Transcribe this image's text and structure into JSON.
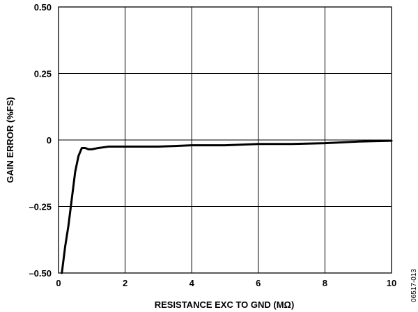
{
  "chart_data": {
    "type": "line",
    "title": "",
    "xlabel": "RESISTANCE EXC TO GND (MΩ)",
    "ylabel": "GAIN ERROR (%FS)",
    "xlim": [
      0,
      10
    ],
    "ylim": [
      -0.5,
      0.5
    ],
    "x_ticks": [
      0,
      2,
      4,
      6,
      8,
      10
    ],
    "x_tick_labels": [
      "0",
      "2",
      "4",
      "6",
      "8",
      "10"
    ],
    "y_ticks": [
      0.5,
      0.25,
      0,
      -0.25,
      -0.5
    ],
    "y_tick_labels": [
      "0.50",
      "0.25",
      "0",
      "–0.25",
      "–0.50"
    ],
    "grid": true,
    "series": [
      {
        "color": "#000000",
        "x": [
          0.1,
          0.2,
          0.3,
          0.4,
          0.5,
          0.6,
          0.7,
          0.8,
          0.9,
          1.0,
          1.2,
          1.5,
          2.0,
          3.0,
          4.0,
          5.0,
          6.0,
          7.0,
          8.0,
          9.0,
          10.0
        ],
        "y": [
          -0.5,
          -0.4,
          -0.32,
          -0.22,
          -0.12,
          -0.06,
          -0.03,
          -0.03,
          -0.035,
          -0.035,
          -0.03,
          -0.025,
          -0.025,
          -0.025,
          -0.02,
          -0.02,
          -0.015,
          -0.015,
          -0.012,
          -0.006,
          -0.003
        ]
      }
    ]
  },
  "figure_code": "06517-013"
}
